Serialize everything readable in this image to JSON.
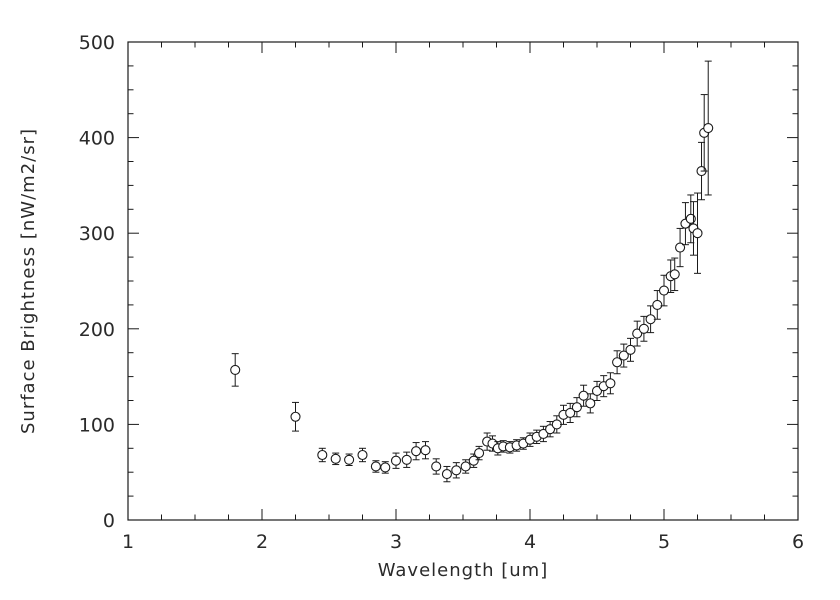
{
  "chart_data": {
    "type": "scatter",
    "title": "",
    "xlabel": "Wavelength [um]",
    "ylabel": "Surface Brightness [nW/m2/sr]",
    "xlim": [
      1,
      6
    ],
    "ylim": [
      0,
      500
    ],
    "xticks": [
      1,
      2,
      3,
      4,
      5,
      6
    ],
    "yticks": [
      0,
      100,
      200,
      300,
      400,
      500
    ],
    "x_minor_step": 0.25,
    "y_minor_step": 25,
    "grid": "off",
    "legend": "none",
    "marker": "open-circle",
    "error_bars": "vertical-capped",
    "line_color": "#1a1a1a",
    "background_color": "#ffffff",
    "series": [
      {
        "name": "surface-brightness-spectrum",
        "points": [
          {
            "x": 1.8,
            "y": 157,
            "e": 17
          },
          {
            "x": 2.25,
            "y": 108,
            "e": 15
          },
          {
            "x": 2.45,
            "y": 68,
            "e": 7
          },
          {
            "x": 2.55,
            "y": 64,
            "e": 6
          },
          {
            "x": 2.65,
            "y": 63,
            "e": 6
          },
          {
            "x": 2.75,
            "y": 68,
            "e": 7
          },
          {
            "x": 2.85,
            "y": 56,
            "e": 6
          },
          {
            "x": 2.92,
            "y": 55,
            "e": 6
          },
          {
            "x": 3.0,
            "y": 62,
            "e": 8
          },
          {
            "x": 3.08,
            "y": 63,
            "e": 8
          },
          {
            "x": 3.15,
            "y": 72,
            "e": 9
          },
          {
            "x": 3.22,
            "y": 73,
            "e": 9
          },
          {
            "x": 3.3,
            "y": 56,
            "e": 8
          },
          {
            "x": 3.38,
            "y": 48,
            "e": 8
          },
          {
            "x": 3.45,
            "y": 52,
            "e": 8
          },
          {
            "x": 3.52,
            "y": 56,
            "e": 7
          },
          {
            "x": 3.58,
            "y": 62,
            "e": 7
          },
          {
            "x": 3.62,
            "y": 70,
            "e": 7
          },
          {
            "x": 3.68,
            "y": 82,
            "e": 9
          },
          {
            "x": 3.72,
            "y": 80,
            "e": 8
          },
          {
            "x": 3.76,
            "y": 75,
            "e": 7
          },
          {
            "x": 3.8,
            "y": 77,
            "e": 6
          },
          {
            "x": 3.85,
            "y": 76,
            "e": 6
          },
          {
            "x": 3.9,
            "y": 78,
            "e": 6
          },
          {
            "x": 3.95,
            "y": 80,
            "e": 6
          },
          {
            "x": 4.0,
            "y": 84,
            "e": 7
          },
          {
            "x": 4.05,
            "y": 87,
            "e": 7
          },
          {
            "x": 4.1,
            "y": 90,
            "e": 8
          },
          {
            "x": 4.15,
            "y": 95,
            "e": 8
          },
          {
            "x": 4.2,
            "y": 100,
            "e": 9
          },
          {
            "x": 4.25,
            "y": 110,
            "e": 10
          },
          {
            "x": 4.3,
            "y": 112,
            "e": 10
          },
          {
            "x": 4.35,
            "y": 118,
            "e": 10
          },
          {
            "x": 4.4,
            "y": 130,
            "e": 11
          },
          {
            "x": 4.45,
            "y": 122,
            "e": 10
          },
          {
            "x": 4.5,
            "y": 135,
            "e": 10
          },
          {
            "x": 4.55,
            "y": 140,
            "e": 11
          },
          {
            "x": 4.6,
            "y": 143,
            "e": 11
          },
          {
            "x": 4.65,
            "y": 165,
            "e": 12
          },
          {
            "x": 4.7,
            "y": 172,
            "e": 12
          },
          {
            "x": 4.75,
            "y": 178,
            "e": 12
          },
          {
            "x": 4.8,
            "y": 195,
            "e": 13
          },
          {
            "x": 4.85,
            "y": 200,
            "e": 13
          },
          {
            "x": 4.9,
            "y": 210,
            "e": 14
          },
          {
            "x": 4.95,
            "y": 225,
            "e": 15
          },
          {
            "x": 5.0,
            "y": 240,
            "e": 16
          },
          {
            "x": 5.05,
            "y": 255,
            "e": 17
          },
          {
            "x": 5.08,
            "y": 257,
            "e": 17
          },
          {
            "x": 5.12,
            "y": 285,
            "e": 20
          },
          {
            "x": 5.16,
            "y": 310,
            "e": 22
          },
          {
            "x": 5.2,
            "y": 315,
            "e": 25
          },
          {
            "x": 5.22,
            "y": 305,
            "e": 28
          },
          {
            "x": 5.25,
            "y": 300,
            "e": 42
          },
          {
            "x": 5.28,
            "y": 365,
            "e": 30
          },
          {
            "x": 5.3,
            "y": 405,
            "e": 40
          },
          {
            "x": 5.33,
            "y": 410,
            "e": 70
          }
        ]
      }
    ]
  }
}
